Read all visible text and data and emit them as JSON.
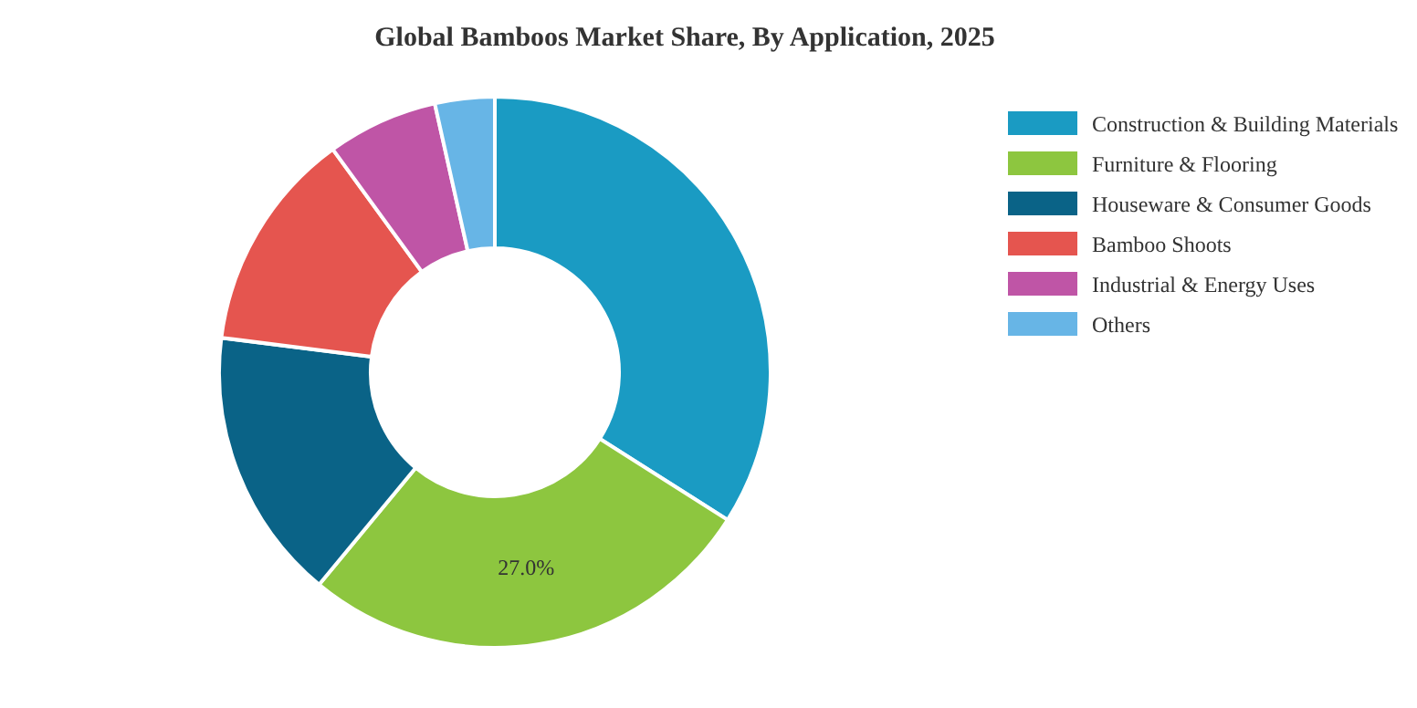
{
  "chart_data": {
    "type": "donut",
    "title": "Global Bamboos Market Share, By Application, 2025",
    "categories": [
      "Construction & Building Materials",
      "Furniture & Flooring",
      "Houseware & Consumer Goods",
      "Bamboo Shoots",
      "Industrial & Energy Uses",
      "Others"
    ],
    "values": [
      34,
      27,
      16,
      13,
      6.5,
      3.5
    ],
    "colors": [
      "#1a9bc3",
      "#8dc63f",
      "#0a6387",
      "#e5554f",
      "#bf55a6",
      "#67b5e6"
    ],
    "value_labels": [
      null,
      "27.0%",
      null,
      null,
      null,
      null
    ],
    "legend": "top right"
  }
}
